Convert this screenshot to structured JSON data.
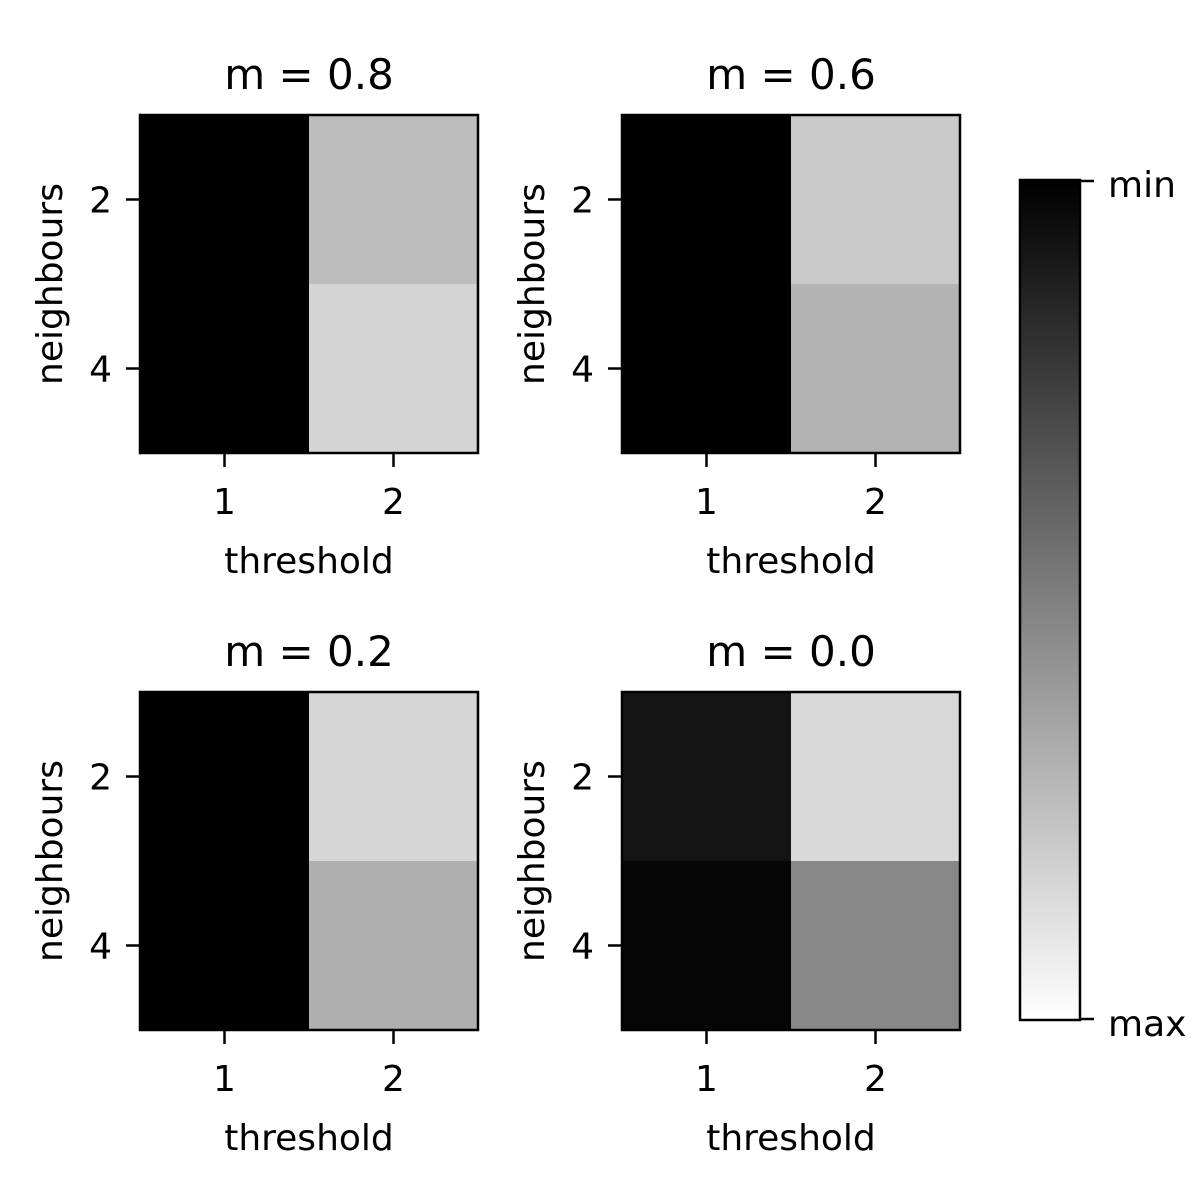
{
  "chart_data": {
    "type": "heatmap",
    "colormap": "gray (min = black, max = white)",
    "x_categories": [
      "1",
      "2"
    ],
    "y_categories": [
      "2",
      "4"
    ],
    "xlabel": "threshold",
    "ylabel": "neighbours",
    "colorbar": {
      "min_label": "min",
      "max_label": "max"
    },
    "panels": [
      {
        "title": "m = 0.8",
        "values": [
          [
            0.0,
            0.74
          ],
          [
            0.0,
            0.83
          ]
        ]
      },
      {
        "title": "m = 0.6",
        "values": [
          [
            0.0,
            0.79
          ],
          [
            0.0,
            0.7
          ]
        ]
      },
      {
        "title": "m = 0.2",
        "values": [
          [
            0.0,
            0.84
          ],
          [
            0.0,
            0.69
          ]
        ]
      },
      {
        "title": "m = 0.0",
        "values": [
          [
            0.08,
            0.85
          ],
          [
            0.02,
            0.53
          ]
        ]
      }
    ]
  }
}
